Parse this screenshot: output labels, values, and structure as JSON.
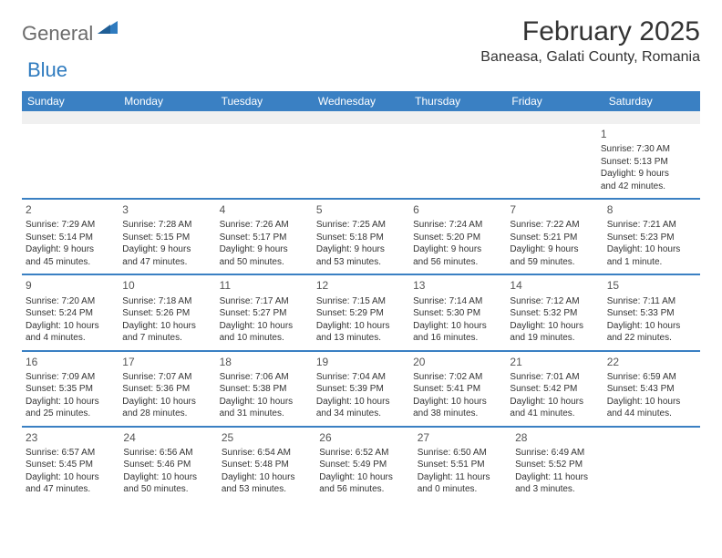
{
  "logo": {
    "text1": "General",
    "text2": "Blue"
  },
  "header": {
    "month_title": "February 2025",
    "location": "Baneasa, Galati County, Romania"
  },
  "colors": {
    "header_bar": "#3a80c3",
    "rule": "#3a80c3",
    "bg": "#ffffff",
    "spacer_bg": "#f0f0f0",
    "text": "#333333",
    "logo_gray": "#6b6b6b",
    "logo_blue": "#2f7bbf"
  },
  "weekdays": [
    "Sunday",
    "Monday",
    "Tuesday",
    "Wednesday",
    "Thursday",
    "Friday",
    "Saturday"
  ],
  "weeks": [
    [
      null,
      null,
      null,
      null,
      null,
      null,
      {
        "n": "1",
        "sunrise": "Sunrise: 7:30 AM",
        "sunset": "Sunset: 5:13 PM",
        "day1": "Daylight: 9 hours",
        "day2": "and 42 minutes."
      }
    ],
    [
      {
        "n": "2",
        "sunrise": "Sunrise: 7:29 AM",
        "sunset": "Sunset: 5:14 PM",
        "day1": "Daylight: 9 hours",
        "day2": "and 45 minutes."
      },
      {
        "n": "3",
        "sunrise": "Sunrise: 7:28 AM",
        "sunset": "Sunset: 5:15 PM",
        "day1": "Daylight: 9 hours",
        "day2": "and 47 minutes."
      },
      {
        "n": "4",
        "sunrise": "Sunrise: 7:26 AM",
        "sunset": "Sunset: 5:17 PM",
        "day1": "Daylight: 9 hours",
        "day2": "and 50 minutes."
      },
      {
        "n": "5",
        "sunrise": "Sunrise: 7:25 AM",
        "sunset": "Sunset: 5:18 PM",
        "day1": "Daylight: 9 hours",
        "day2": "and 53 minutes."
      },
      {
        "n": "6",
        "sunrise": "Sunrise: 7:24 AM",
        "sunset": "Sunset: 5:20 PM",
        "day1": "Daylight: 9 hours",
        "day2": "and 56 minutes."
      },
      {
        "n": "7",
        "sunrise": "Sunrise: 7:22 AM",
        "sunset": "Sunset: 5:21 PM",
        "day1": "Daylight: 9 hours",
        "day2": "and 59 minutes."
      },
      {
        "n": "8",
        "sunrise": "Sunrise: 7:21 AM",
        "sunset": "Sunset: 5:23 PM",
        "day1": "Daylight: 10 hours",
        "day2": "and 1 minute."
      }
    ],
    [
      {
        "n": "9",
        "sunrise": "Sunrise: 7:20 AM",
        "sunset": "Sunset: 5:24 PM",
        "day1": "Daylight: 10 hours",
        "day2": "and 4 minutes."
      },
      {
        "n": "10",
        "sunrise": "Sunrise: 7:18 AM",
        "sunset": "Sunset: 5:26 PM",
        "day1": "Daylight: 10 hours",
        "day2": "and 7 minutes."
      },
      {
        "n": "11",
        "sunrise": "Sunrise: 7:17 AM",
        "sunset": "Sunset: 5:27 PM",
        "day1": "Daylight: 10 hours",
        "day2": "and 10 minutes."
      },
      {
        "n": "12",
        "sunrise": "Sunrise: 7:15 AM",
        "sunset": "Sunset: 5:29 PM",
        "day1": "Daylight: 10 hours",
        "day2": "and 13 minutes."
      },
      {
        "n": "13",
        "sunrise": "Sunrise: 7:14 AM",
        "sunset": "Sunset: 5:30 PM",
        "day1": "Daylight: 10 hours",
        "day2": "and 16 minutes."
      },
      {
        "n": "14",
        "sunrise": "Sunrise: 7:12 AM",
        "sunset": "Sunset: 5:32 PM",
        "day1": "Daylight: 10 hours",
        "day2": "and 19 minutes."
      },
      {
        "n": "15",
        "sunrise": "Sunrise: 7:11 AM",
        "sunset": "Sunset: 5:33 PM",
        "day1": "Daylight: 10 hours",
        "day2": "and 22 minutes."
      }
    ],
    [
      {
        "n": "16",
        "sunrise": "Sunrise: 7:09 AM",
        "sunset": "Sunset: 5:35 PM",
        "day1": "Daylight: 10 hours",
        "day2": "and 25 minutes."
      },
      {
        "n": "17",
        "sunrise": "Sunrise: 7:07 AM",
        "sunset": "Sunset: 5:36 PM",
        "day1": "Daylight: 10 hours",
        "day2": "and 28 minutes."
      },
      {
        "n": "18",
        "sunrise": "Sunrise: 7:06 AM",
        "sunset": "Sunset: 5:38 PM",
        "day1": "Daylight: 10 hours",
        "day2": "and 31 minutes."
      },
      {
        "n": "19",
        "sunrise": "Sunrise: 7:04 AM",
        "sunset": "Sunset: 5:39 PM",
        "day1": "Daylight: 10 hours",
        "day2": "and 34 minutes."
      },
      {
        "n": "20",
        "sunrise": "Sunrise: 7:02 AM",
        "sunset": "Sunset: 5:41 PM",
        "day1": "Daylight: 10 hours",
        "day2": "and 38 minutes."
      },
      {
        "n": "21",
        "sunrise": "Sunrise: 7:01 AM",
        "sunset": "Sunset: 5:42 PM",
        "day1": "Daylight: 10 hours",
        "day2": "and 41 minutes."
      },
      {
        "n": "22",
        "sunrise": "Sunrise: 6:59 AM",
        "sunset": "Sunset: 5:43 PM",
        "day1": "Daylight: 10 hours",
        "day2": "and 44 minutes."
      }
    ],
    [
      {
        "n": "23",
        "sunrise": "Sunrise: 6:57 AM",
        "sunset": "Sunset: 5:45 PM",
        "day1": "Daylight: 10 hours",
        "day2": "and 47 minutes."
      },
      {
        "n": "24",
        "sunrise": "Sunrise: 6:56 AM",
        "sunset": "Sunset: 5:46 PM",
        "day1": "Daylight: 10 hours",
        "day2": "and 50 minutes."
      },
      {
        "n": "25",
        "sunrise": "Sunrise: 6:54 AM",
        "sunset": "Sunset: 5:48 PM",
        "day1": "Daylight: 10 hours",
        "day2": "and 53 minutes."
      },
      {
        "n": "26",
        "sunrise": "Sunrise: 6:52 AM",
        "sunset": "Sunset: 5:49 PM",
        "day1": "Daylight: 10 hours",
        "day2": "and 56 minutes."
      },
      {
        "n": "27",
        "sunrise": "Sunrise: 6:50 AM",
        "sunset": "Sunset: 5:51 PM",
        "day1": "Daylight: 11 hours",
        "day2": "and 0 minutes."
      },
      {
        "n": "28",
        "sunrise": "Sunrise: 6:49 AM",
        "sunset": "Sunset: 5:52 PM",
        "day1": "Daylight: 11 hours",
        "day2": "and 3 minutes."
      },
      null
    ]
  ]
}
